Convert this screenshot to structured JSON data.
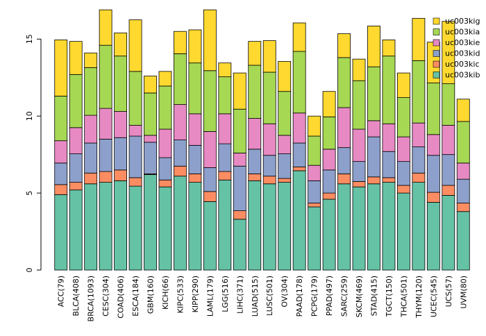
{
  "chart_data": {
    "type": "bar",
    "stacked": true,
    "title": "",
    "xlabel": "",
    "ylabel": "",
    "ylim": [
      0,
      17
    ],
    "yticks": [
      0,
      5,
      10,
      15
    ],
    "grid": false,
    "legend_position": "top-right",
    "categories": [
      "ACC(79)",
      "BLCA(408)",
      "BRCA(1093)",
      "CESC(304)",
      "COAD(406)",
      "ESCA(184)",
      "GBM(160)",
      "KICH(66)",
      "KIPC(533)",
      "KIPP(290)",
      "LAML(179)",
      "LGG(516)",
      "LIHC(371)",
      "LUAD(515)",
      "LUSC(501)",
      "OV(304)",
      "PAAD(178)",
      "PCPG(179)",
      "PPAD(497)",
      "SARC(259)",
      "SKCM(469)",
      "STAD(415)",
      "TGCT(150)",
      "THCA(501)",
      "THYM(120)",
      "UCEC(545)",
      "UCS(57)",
      "UVM(80)"
    ],
    "series": [
      {
        "name": "uc003kib",
        "color": "#66c2a5",
        "values": [
          4.9,
          5.2,
          5.6,
          5.7,
          5.8,
          5.45,
          6.2,
          5.4,
          6.1,
          5.7,
          4.45,
          5.85,
          3.3,
          5.8,
          5.6,
          5.7,
          6.45,
          4.1,
          4.6,
          5.6,
          5.4,
          5.6,
          5.7,
          5.0,
          5.7,
          4.4,
          4.85,
          3.8
        ]
      },
      {
        "name": "uc003kic",
        "color": "#fc8d62",
        "values": [
          0.65,
          0.5,
          0.7,
          0.7,
          0.7,
          0.55,
          0.05,
          0.45,
          0.65,
          0.55,
          0.65,
          0.55,
          0.55,
          0.45,
          0.5,
          0.25,
          0.25,
          0.25,
          0.4,
          0.65,
          0.35,
          0.45,
          0.3,
          0.5,
          0.6,
          0.65,
          0.65,
          0.55
        ]
      },
      {
        "name": "uc003kid",
        "color": "#8da0cb",
        "values": [
          1.4,
          1.85,
          1.95,
          2.1,
          2.1,
          2.7,
          2.05,
          1.45,
          1.7,
          1.85,
          1.55,
          1.8,
          2.9,
          1.6,
          1.35,
          1.6,
          1.55,
          1.45,
          1.5,
          1.7,
          1.3,
          2.6,
          1.7,
          1.55,
          1.7,
          2.4,
          2.0,
          1.55
        ]
      },
      {
        "name": "uc003kie",
        "color": "#e78ac3",
        "values": [
          1.45,
          1.7,
          1.8,
          2.0,
          1.7,
          0.7,
          0.45,
          1.85,
          2.3,
          2.05,
          2.35,
          1.95,
          0.85,
          2.0,
          2.05,
          1.2,
          1.95,
          1.0,
          1.35,
          2.6,
          2.1,
          1.05,
          1.8,
          1.6,
          1.55,
          1.35,
          1.9,
          1.05
        ]
      },
      {
        "name": "uc003kia",
        "color": "#a6d854",
        "values": [
          2.9,
          3.45,
          3.1,
          4.1,
          3.6,
          3.5,
          2.75,
          2.8,
          3.3,
          3.3,
          3.95,
          2.4,
          2.85,
          3.45,
          3.35,
          2.85,
          4.0,
          1.9,
          2.1,
          3.25,
          3.15,
          3.5,
          4.4,
          2.55,
          4.05,
          3.35,
          2.7,
          2.7
        ]
      },
      {
        "name": "uc003kig",
        "color": "#ffd92f",
        "values": [
          3.65,
          2.15,
          0.95,
          2.3,
          1.5,
          3.35,
          1.1,
          0.95,
          1.45,
          2.15,
          3.95,
          0.9,
          2.35,
          1.55,
          2.05,
          1.95,
          1.85,
          1.3,
          1.65,
          1.55,
          1.4,
          2.65,
          1.05,
          1.6,
          2.75,
          2.65,
          4.05,
          1.45
        ]
      }
    ]
  }
}
